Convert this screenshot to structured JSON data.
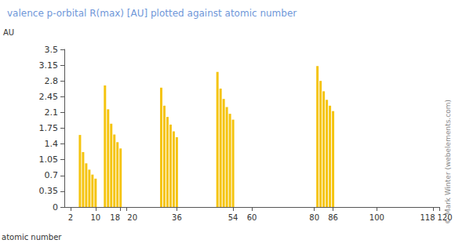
{
  "chart_data": {
    "type": "bar",
    "title": "valence p-orbital R(max) [AU] plotted against atomic number",
    "x_label": "atomic number",
    "y_label": "AU",
    "annotation": "© Mark Winter (webelements.com)",
    "x": [
      5,
      6,
      7,
      8,
      9,
      10,
      13,
      14,
      15,
      16,
      17,
      18,
      31,
      32,
      33,
      34,
      35,
      36,
      49,
      50,
      51,
      52,
      53,
      54,
      81,
      82,
      83,
      84,
      85,
      86
    ],
    "values": [
      1.6,
      1.22,
      0.97,
      0.83,
      0.72,
      0.63,
      2.7,
      2.17,
      1.85,
      1.61,
      1.44,
      1.3,
      2.65,
      2.25,
      2.0,
      1.83,
      1.68,
      1.55,
      3.0,
      2.63,
      2.4,
      2.22,
      2.07,
      1.94,
      3.13,
      2.8,
      2.57,
      2.38,
      2.25,
      2.13
    ],
    "color": "#f5c40f",
    "xlim": [
      0,
      120
    ],
    "xticks": [
      2,
      10,
      18,
      20,
      36,
      54,
      60,
      80,
      86,
      100,
      118,
      120
    ],
    "ylim": [
      0,
      3.5
    ],
    "yticks": [
      0,
      0.35,
      0.7,
      1.05,
      1.4,
      1.75,
      2.1,
      2.45,
      2.8,
      3.15,
      3.5
    ],
    "grid": false
  }
}
